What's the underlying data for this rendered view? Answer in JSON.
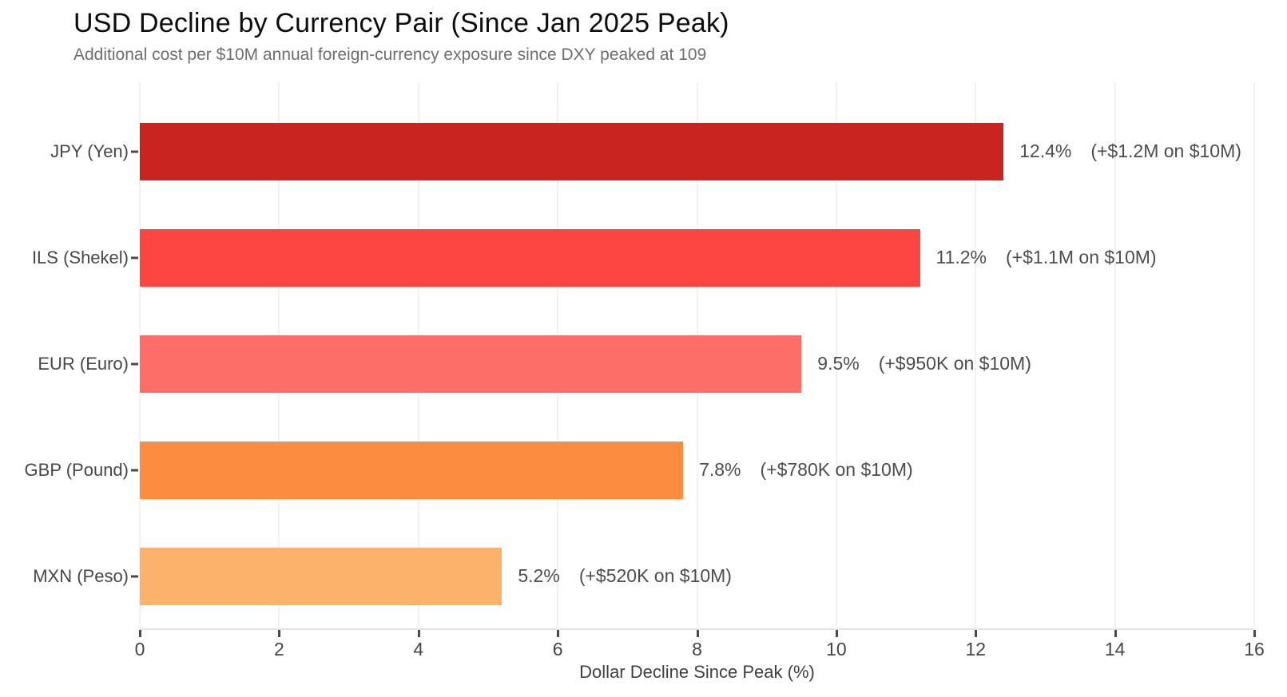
{
  "chart_data": {
    "type": "bar",
    "orientation": "horizontal",
    "title": "USD Decline by Currency Pair (Since Jan 2025 Peak)",
    "subtitle": "Additional cost per $10M annual foreign-currency exposure since DXY peaked at 109",
    "xlabel": "Dollar Decline Since Peak (%)",
    "xlim": [
      0,
      16
    ],
    "xticks": [
      "0",
      "2",
      "4",
      "6",
      "8",
      "10",
      "12",
      "14",
      "16"
    ],
    "grid": "vertical light-gray at major ticks",
    "legend": "none",
    "categories": [
      "JPY (Yen)",
      "ILS (Shekel)",
      "EUR (Euro)",
      "GBP (Pound)",
      "MXN (Peso)"
    ],
    "values": [
      12.4,
      11.2,
      9.5,
      7.8,
      5.2
    ],
    "bars": [
      {
        "category": "JPY (Yen)",
        "value": 12.4,
        "pct_label": "12.4%",
        "cost_label": "(+$1.2M on $10M)",
        "color": "#ca2420"
      },
      {
        "category": "ILS (Shekel)",
        "value": 11.2,
        "pct_label": "11.2%",
        "cost_label": "(+$1.1M on $10M)",
        "color": "#fd4642"
      },
      {
        "category": "EUR (Euro)",
        "value": 9.5,
        "pct_label": "9.5%",
        "cost_label": "(+$950K on $10M)",
        "color": "#fd6e68"
      },
      {
        "category": "GBP (Pound)",
        "value": 7.8,
        "pct_label": "7.8%",
        "cost_label": "(+$780K on $10M)",
        "color": "#fb8c40"
      },
      {
        "category": "MXN (Peso)",
        "value": 5.2,
        "pct_label": "5.2%",
        "cost_label": "(+$520K on $10M)",
        "color": "#fcb26a"
      }
    ],
    "style_colors": {
      "background": "#ffffff",
      "title_text": "#0d0d0d",
      "subtitle_text": "#6e6e6e",
      "tick_text": "#454545",
      "annotation_text": "#4d4d4d",
      "gridline": "#f2f2f2",
      "axis_line": "#e4e4e4",
      "tick_mark": "#4a4a4a"
    }
  }
}
